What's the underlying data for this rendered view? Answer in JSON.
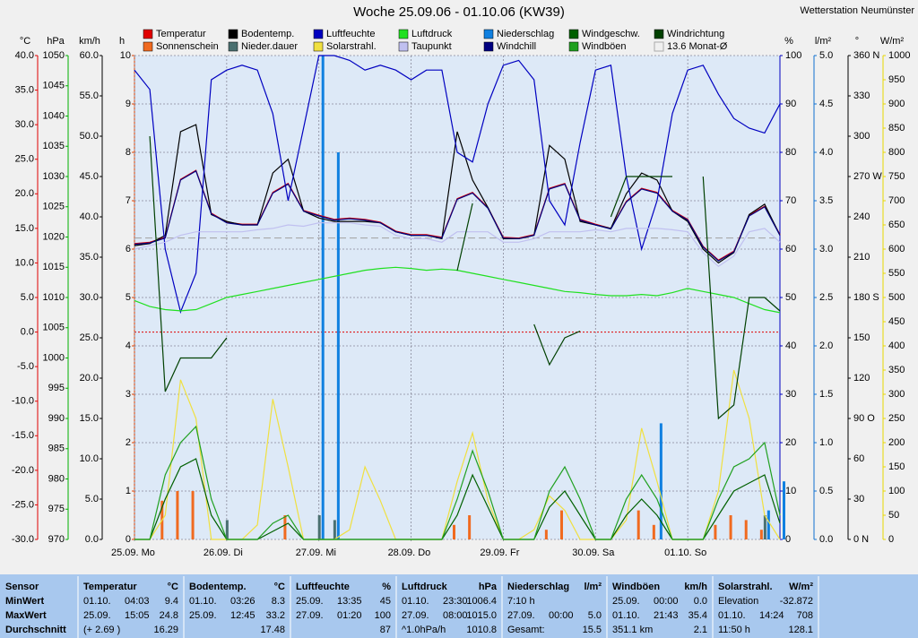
{
  "chart_data": {
    "type": "line",
    "title": "Woche 25.09.06 - 01.10.06 (KW39)",
    "station": "Wetterstation Neumünster",
    "x": [
      0,
      4,
      8,
      12,
      16,
      20,
      24,
      28,
      32,
      36,
      40,
      44,
      48,
      52,
      56,
      60,
      64,
      68,
      72,
      76,
      80,
      84,
      88,
      92,
      96,
      100,
      104,
      108,
      112,
      116,
      120,
      124,
      128,
      132,
      136,
      140,
      144,
      148,
      152,
      156,
      160,
      164,
      168
    ],
    "xlim": [
      0,
      168
    ],
    "xticks": [
      {
        "value": 0,
        "label": "25.09. Mo"
      },
      {
        "value": 24,
        "label": "26.09. Di"
      },
      {
        "value": 48,
        "label": "27.09. Mi"
      },
      {
        "value": 72,
        "label": "28.09. Do"
      },
      {
        "value": 96,
        "label": "29.09. Fr"
      },
      {
        "value": 120,
        "label": "30.09. Sa"
      },
      {
        "value": 144,
        "label": "01.10. So"
      }
    ],
    "grid": true,
    "grid_axis": 3,
    "axes": [
      {
        "unit": "°C",
        "color": "#e00000",
        "side": "left",
        "lim": [
          -30,
          40
        ],
        "ticks": [
          {
            "value": 40,
            "label": "40.0"
          },
          {
            "value": 35,
            "label": "35.0"
          },
          {
            "value": 30,
            "label": "30.0"
          },
          {
            "value": 25,
            "label": "25.0"
          },
          {
            "value": 20,
            "label": "20.0"
          },
          {
            "value": 15,
            "label": "15.0"
          },
          {
            "value": 10,
            "label": "10.0"
          },
          {
            "value": 5,
            "label": "5.0"
          },
          {
            "value": 0,
            "label": "0.0"
          },
          {
            "value": -5,
            "label": "-5.0"
          },
          {
            "value": -10,
            "label": "-10.0"
          },
          {
            "value": -15,
            "label": "-15.0"
          },
          {
            "value": -20,
            "label": "-20.0"
          },
          {
            "value": -25,
            "label": "-25.0"
          },
          {
            "value": -30,
            "label": "-30.0"
          }
        ]
      },
      {
        "unit": "hPa",
        "color": "#00b000",
        "side": "left",
        "lim": [
          970,
          1050
        ],
        "ticks": [
          1050,
          1045,
          1040,
          1035,
          1030,
          1025,
          1020,
          1015,
          1010,
          1005,
          1000,
          995,
          990,
          985,
          980,
          975,
          970
        ]
      },
      {
        "unit": "km/h",
        "color": "#000000",
        "side": "left",
        "lim": [
          0,
          60
        ],
        "ticks": [
          {
            "value": 60,
            "label": "60.0"
          },
          {
            "value": 55,
            "label": "55.0"
          },
          {
            "value": 50,
            "label": "50.0"
          },
          {
            "value": 45,
            "label": "45.0"
          },
          {
            "value": 40,
            "label": "40.0"
          },
          {
            "value": 35,
            "label": "35.0"
          },
          {
            "value": 30,
            "label": "30.0"
          },
          {
            "value": 25,
            "label": "25.0"
          },
          {
            "value": 20,
            "label": "20.0"
          },
          {
            "value": 15,
            "label": "15.0"
          },
          {
            "value": 10,
            "label": "10.0"
          },
          {
            "value": 5,
            "label": "5.0"
          },
          {
            "value": 0,
            "label": "0.0"
          }
        ]
      },
      {
        "unit": "h",
        "color": "#e04000",
        "side": "left",
        "lim": [
          0,
          10
        ],
        "ticks": [
          10,
          9,
          8,
          7,
          6,
          5,
          4,
          3,
          2,
          1,
          0
        ]
      },
      {
        "unit": "%",
        "color": "#0000c0",
        "side": "right",
        "lim": [
          0,
          100
        ],
        "ticks": [
          100,
          90,
          80,
          70,
          60,
          50,
          40,
          30,
          20,
          10,
          0
        ]
      },
      {
        "unit": "l/m²",
        "color": "#1070d0",
        "side": "right",
        "lim": [
          0,
          5
        ],
        "ticks": [
          {
            "value": 5,
            "label": "5.0"
          },
          {
            "value": 4.5,
            "label": "4.5"
          },
          {
            "value": 4,
            "label": "4.0"
          },
          {
            "value": 3.5,
            "label": "3.5"
          },
          {
            "value": 3,
            "label": "3.0"
          },
          {
            "value": 2.5,
            "label": "2.5"
          },
          {
            "value": 2,
            "label": "2.0"
          },
          {
            "value": 1.5,
            "label": "1.5"
          },
          {
            "value": 1,
            "label": "1.0"
          },
          {
            "value": 0.5,
            "label": "0.5"
          },
          {
            "value": 0,
            "label": "0.0"
          }
        ]
      },
      {
        "unit": "°",
        "color": "#000000",
        "side": "right",
        "lim": [
          0,
          360
        ],
        "ticks": [
          {
            "value": 360,
            "label": "360 N"
          },
          330,
          300,
          {
            "value": 270,
            "label": "270 W"
          },
          240,
          210,
          {
            "value": 180,
            "label": "180 S"
          },
          150,
          120,
          {
            "value": 90,
            "label": "90 O"
          },
          60,
          30,
          {
            "value": 0,
            "label": "0 N"
          }
        ]
      },
      {
        "unit": "W/m²",
        "color": "#e8d800",
        "side": "right",
        "lim": [
          0,
          1000
        ],
        "ticks": [
          1000,
          950,
          900,
          850,
          800,
          750,
          700,
          650,
          600,
          550,
          500,
          450,
          400,
          350,
          300,
          250,
          200,
          150,
          100,
          50,
          0
        ]
      }
    ],
    "series": [
      {
        "name": "Temperatur",
        "color": "#e00000",
        "axis": 0,
        "kind": "line",
        "values": [
          12.8,
          13.0,
          13.7,
          22.1,
          23.4,
          17.2,
          15.9,
          15.6,
          15.6,
          20.2,
          21.5,
          17.6,
          16.9,
          16.3,
          16.5,
          16.3,
          15.9,
          14.6,
          14.1,
          14.1,
          13.7,
          19.3,
          20.2,
          18.0,
          13.7,
          13.6,
          14.1,
          20.8,
          21.5,
          16.3,
          15.6,
          15.0,
          18.9,
          20.8,
          20.2,
          17.6,
          16.3,
          12.4,
          10.4,
          11.7,
          16.9,
          18.2,
          14.1
        ]
      },
      {
        "name": "Sonnenschein",
        "color": "#f06a20",
        "axis": 3,
        "kind": "bar",
        "values": [
          0,
          0,
          0.8,
          1,
          1,
          0,
          0,
          0,
          0,
          0,
          0.5,
          0,
          0,
          0,
          0,
          0,
          0,
          0,
          0,
          0,
          0,
          0.3,
          0.5,
          0,
          0,
          0,
          0,
          0.2,
          0.6,
          0,
          0,
          0,
          0,
          0.6,
          0.3,
          0,
          0,
          0,
          0.3,
          0.5,
          0.4,
          0.2,
          0
        ]
      },
      {
        "name": "Bodentemp.",
        "color": "#000000",
        "axis": 0,
        "kind": "line",
        "values": [
          12.5,
          12.8,
          14,
          29,
          30,
          17,
          16,
          15.5,
          15.5,
          23,
          25,
          17.5,
          16.5,
          16,
          16,
          16,
          15.8,
          14.5,
          14,
          14,
          13.5,
          29,
          22,
          18,
          13.5,
          13.5,
          14,
          27,
          25,
          16,
          15.5,
          15,
          20,
          23,
          22,
          17.5,
          16,
          12,
          10,
          11.5,
          17,
          18.5,
          14
        ]
      },
      {
        "name": "Nieder.dauer",
        "color": "#4a7070",
        "axis": 3,
        "kind": "bar",
        "values": [
          0,
          0,
          0,
          0,
          0,
          0,
          0.4,
          0,
          0,
          0,
          0,
          0,
          0.5,
          0.4,
          0,
          0,
          0,
          0,
          0,
          0,
          0,
          0,
          0,
          0,
          0,
          0,
          0,
          0,
          0,
          0,
          0,
          0,
          0,
          0,
          0,
          0,
          0,
          0,
          0,
          0,
          0,
          0.5,
          0
        ]
      },
      {
        "name": "Luftfeuchte",
        "color": "#0000c0",
        "axis": 4,
        "kind": "line",
        "values": [
          97,
          93,
          60,
          47,
          55,
          95,
          97,
          98,
          97,
          88,
          70,
          85,
          100,
          100,
          99,
          97,
          98,
          97,
          95,
          97,
          97,
          80,
          78,
          90,
          98,
          99,
          95,
          70,
          65,
          82,
          97,
          98,
          75,
          60,
          70,
          88,
          97,
          98,
          92,
          87,
          85,
          84,
          90
        ]
      },
      {
        "name": "Solarstrahl.",
        "color": "#f0e040",
        "axis": 7,
        "kind": "line",
        "values": [
          0,
          0,
          50,
          330,
          250,
          0,
          0,
          0,
          30,
          290,
          150,
          0,
          0,
          0,
          20,
          150,
          80,
          0,
          0,
          0,
          0,
          120,
          220,
          80,
          0,
          0,
          20,
          90,
          60,
          0,
          0,
          0,
          40,
          230,
          120,
          0,
          0,
          0,
          100,
          350,
          250,
          50,
          0
        ]
      },
      {
        "name": "Luftdruck",
        "color": "#20e020",
        "axis": 1,
        "kind": "line",
        "values": [
          1009.5,
          1008.5,
          1008,
          1007.8,
          1008,
          1009,
          1010,
          1010.5,
          1011,
          1011.5,
          1012,
          1012.5,
          1013,
          1013.5,
          1014,
          1014.5,
          1014.8,
          1015,
          1014.8,
          1014.5,
          1014.7,
          1014.5,
          1014,
          1013.5,
          1013,
          1012.5,
          1012,
          1011.5,
          1011,
          1010.8,
          1010.5,
          1010.3,
          1010.3,
          1010.5,
          1010.3,
          1010.8,
          1011.5,
          1011,
          1010.5,
          1010,
          1009,
          1008,
          1007.5
        ]
      },
      {
        "name": "Taupunkt",
        "color": "#c0c0f0",
        "axis": 0,
        "kind": "line",
        "values": [
          12,
          12.5,
          13,
          14,
          14.5,
          14.5,
          14.5,
          14.5,
          14.8,
          15,
          15.5,
          15.3,
          15.8,
          15.8,
          15.8,
          15.5,
          15.3,
          14,
          13.5,
          13.5,
          13,
          14.5,
          14.5,
          14.5,
          13,
          13,
          13.5,
          14.5,
          14.5,
          14.5,
          14.8,
          14.5,
          15,
          15,
          15,
          14.8,
          14.5,
          11.5,
          9.5,
          11,
          14.5,
          15,
          13
        ]
      },
      {
        "name": "Niederschlag",
        "color": "#1080e0",
        "axis": 5,
        "kind": "bar",
        "values": [
          0,
          0,
          0,
          0,
          0,
          0,
          0,
          0,
          0,
          0,
          0,
          0,
          5.0,
          4.0,
          0,
          0,
          0,
          0,
          0,
          0,
          0,
          0,
          0,
          0,
          0,
          0,
          0,
          0,
          0,
          0,
          0,
          0,
          0,
          0,
          1.2,
          0,
          0,
          0,
          0,
          0,
          0,
          0.3,
          0.6
        ]
      },
      {
        "name": "Windchill",
        "color": "#000080",
        "axis": 0,
        "kind": "line",
        "values": [
          12.7,
          12.9,
          13.6,
          22.0,
          23.3,
          17.1,
          15.8,
          15.5,
          15.5,
          20.1,
          21.4,
          17.5,
          16.8,
          16.2,
          16.4,
          16.2,
          15.8,
          14.5,
          14.0,
          14.0,
          13.6,
          19.2,
          20.1,
          17.9,
          13.6,
          13.5,
          14.0,
          20.7,
          21.4,
          16.2,
          15.5,
          14.9,
          18.8,
          20.7,
          20.1,
          17.5,
          16.2,
          12.3,
          10.3,
          11.6,
          16.8,
          18.1,
          14.0
        ]
      },
      {
        "name": "Windgeschw.",
        "color": "#006000",
        "axis": 2,
        "kind": "line",
        "values": [
          0,
          0,
          5,
          9,
          10,
          3,
          0,
          0,
          0,
          1,
          2,
          0,
          0,
          0,
          0,
          0,
          0,
          0,
          0,
          0,
          0,
          3,
          8,
          4,
          0,
          0,
          0,
          4,
          6,
          3,
          0,
          0,
          3,
          5,
          3,
          0,
          0,
          0,
          3,
          6,
          7,
          8,
          2
        ]
      },
      {
        "name": "Windböen",
        "color": "#20a020",
        "axis": 2,
        "kind": "line",
        "values": [
          0,
          0,
          8,
          12,
          14,
          5,
          0,
          0,
          0,
          2,
          3,
          0,
          0,
          0,
          0,
          0,
          0,
          0,
          0,
          0,
          0,
          5,
          11,
          6,
          0,
          0,
          0,
          6,
          9,
          5,
          0,
          0,
          5,
          8,
          5,
          0,
          0,
          0,
          5,
          9,
          10,
          12,
          3
        ]
      },
      {
        "name": "Windrichtung",
        "color": "#004000",
        "axis": 6,
        "kind": "line",
        "values": [
          null,
          300,
          110,
          135,
          135,
          135,
          150,
          null,
          null,
          null,
          null,
          null,
          null,
          null,
          null,
          null,
          null,
          null,
          null,
          null,
          null,
          200,
          250,
          null,
          null,
          null,
          160,
          130,
          150,
          155,
          null,
          240,
          270,
          270,
          270,
          270,
          null,
          270,
          90,
          100,
          180,
          180,
          170
        ]
      }
    ],
    "monthly_avg": {
      "label": "13.6 Monat-Ø",
      "value": 13.6,
      "axis": 0,
      "color": "#a0a0a0"
    }
  },
  "table": {
    "columns": [
      {
        "name": "Sensor",
        "rows": [
          "MinWert",
          "MaxWert",
          "Durchschnitt"
        ]
      },
      {
        "name": "Temperatur",
        "unit": "°C",
        "rows": [
          [
            "01.10.",
            "04:03",
            "9.4"
          ],
          [
            "25.09.",
            "15:05",
            "24.8"
          ],
          [
            "(+ 2.69 )",
            "16.29"
          ]
        ]
      },
      {
        "name": "Bodentemp.",
        "unit": "°C",
        "rows": [
          [
            "01.10.",
            "03:26",
            "8.3"
          ],
          [
            "25.09.",
            "12:45",
            "33.2"
          ],
          [
            "17.48"
          ]
        ]
      },
      {
        "name": "Luftfeuchte",
        "unit": "%",
        "rows": [
          [
            "25.09.",
            "13:35",
            "45"
          ],
          [
            "27.09.",
            "01:20",
            "100"
          ],
          [
            "87"
          ]
        ]
      },
      {
        "name": "Luftdruck",
        "unit": "hPa",
        "rows": [
          [
            "01.10.",
            "23:30",
            "1006.4"
          ],
          [
            "27.09.",
            "08:00",
            "1015.0"
          ],
          [
            "^1.0hPa/h",
            "1010.8"
          ]
        ]
      },
      {
        "name": "Niederschlag",
        "unit": "l/m²",
        "rows": [
          [
            "7:10 h"
          ],
          [
            "27.09.",
            "00:00",
            "5.0"
          ],
          [
            "Gesamt:",
            "15.5"
          ]
        ]
      },
      {
        "name": "Windböen",
        "unit": "km/h",
        "rows": [
          [
            "25.09.",
            "00:00",
            "0.0"
          ],
          [
            "01.10.",
            "21:43",
            "35.4"
          ],
          [
            "351.1 km",
            "2.1"
          ]
        ]
      },
      {
        "name": "Solarstrahl.",
        "unit": "W/m²",
        "rows": [
          [
            "Elevation",
            "-32.872"
          ],
          [
            "01.10.",
            "14:24",
            "708"
          ],
          [
            "11:50 h",
            "128.1"
          ]
        ]
      }
    ]
  }
}
